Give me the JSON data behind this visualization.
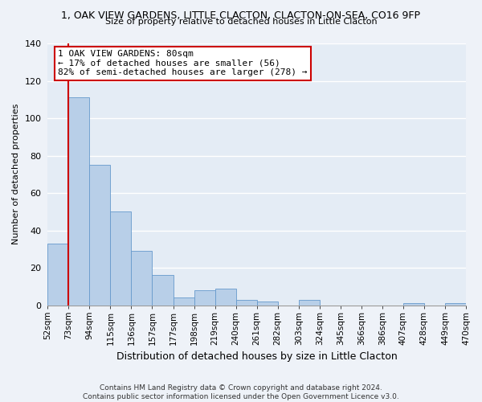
{
  "title": "1, OAK VIEW GARDENS, LITTLE CLACTON, CLACTON-ON-SEA, CO16 9FP",
  "subtitle": "Size of property relative to detached houses in Little Clacton",
  "xlabel": "Distribution of detached houses by size in Little Clacton",
  "ylabel": "Number of detached properties",
  "bar_values": [
    33,
    111,
    75,
    50,
    29,
    16,
    4,
    8,
    9,
    3,
    2,
    0,
    3,
    0,
    0,
    0,
    0,
    1,
    0,
    1
  ],
  "bin_labels": [
    "52sqm",
    "73sqm",
    "94sqm",
    "115sqm",
    "136sqm",
    "157sqm",
    "177sqm",
    "198sqm",
    "219sqm",
    "240sqm",
    "261sqm",
    "282sqm",
    "303sqm",
    "324sqm",
    "345sqm",
    "366sqm",
    "386sqm",
    "407sqm",
    "428sqm",
    "449sqm",
    "470sqm"
  ],
  "bar_color": "#b8cfe8",
  "bar_edge_color": "#6699cc",
  "highlight_line_color": "#cc0000",
  "annotation_text": "1 OAK VIEW GARDENS: 80sqm\n← 17% of detached houses are smaller (56)\n82% of semi-detached houses are larger (278) →",
  "annotation_box_color": "#ffffff",
  "annotation_box_edge_color": "#cc0000",
  "ylim": [
    0,
    140
  ],
  "yticks": [
    0,
    20,
    40,
    60,
    80,
    100,
    120,
    140
  ],
  "footer_line1": "Contains HM Land Registry data © Crown copyright and database right 2024.",
  "footer_line2": "Contains public sector information licensed under the Open Government Licence v3.0.",
  "bg_color": "#eef2f8",
  "plot_bg_color": "#e4ecf5",
  "grid_color": "#ffffff",
  "title_fontsize": 9,
  "subtitle_fontsize": 8,
  "ylabel_fontsize": 8,
  "xlabel_fontsize": 9,
  "tick_fontsize": 7.5,
  "ytick_fontsize": 8,
  "annotation_fontsize": 8,
  "footer_fontsize": 6.5
}
